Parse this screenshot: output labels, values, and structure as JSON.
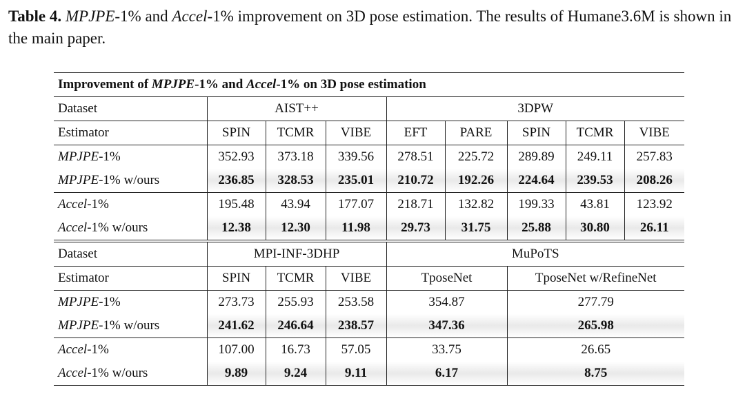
{
  "caption": {
    "label": "Table 4.",
    "parts": [
      " ",
      "MPJPE",
      "-1% and ",
      "Accel",
      "-1% improvement on 3D pose estimation. The results of Humane3.6M is shown in the main paper."
    ]
  },
  "table": {
    "title": [
      "Improvement of ",
      "MPJPE",
      "-1% and ",
      "Accel",
      "-1% on 3D pose estimation"
    ],
    "sections": [
      {
        "dataset_label": "Dataset",
        "datasets": [
          "AIST++",
          "3DPW"
        ],
        "estimator_label": "Estimator",
        "estimators": [
          "SPIN",
          "TCMR",
          "VIBE",
          "EFT",
          "PARE",
          "SPIN",
          "TCMR",
          "VIBE"
        ],
        "rows": [
          {
            "label": [
              "MPJPE",
              "-1%"
            ],
            "values": [
              "352.93",
              "373.18",
              "339.56",
              "278.51",
              "225.72",
              "289.89",
              "249.11",
              "257.83"
            ]
          },
          {
            "label": [
              "MPJPE",
              "-1% w/ours"
            ],
            "values": [
              "236.85",
              "328.53",
              "235.01",
              "210.72",
              "192.26",
              "224.64",
              "239.53",
              "208.26"
            ]
          },
          {
            "label": [
              "Accel",
              "-1%"
            ],
            "values": [
              "195.48",
              "43.94",
              "177.07",
              "218.71",
              "132.82",
              "199.33",
              "43.81",
              "123.92"
            ]
          },
          {
            "label": [
              "Accel",
              "-1% w/ours"
            ],
            "values": [
              "12.38",
              "12.30",
              "11.98",
              "29.73",
              "31.75",
              "25.88",
              "30.80",
              "26.11"
            ]
          }
        ]
      },
      {
        "dataset_label": "Dataset",
        "datasets": [
          "MPI-INF-3DHP",
          "MuPoTS"
        ],
        "estimator_label": "Estimator",
        "estimators": [
          "SPIN",
          "TCMR",
          "VIBE",
          "TposeNet",
          "TposeNet w/RefineNet"
        ],
        "rows": [
          {
            "label": [
              "MPJPE",
              "-1%"
            ],
            "values": [
              "273.73",
              "255.93",
              "253.58",
              "354.87",
              "277.79"
            ]
          },
          {
            "label": [
              "MPJPE",
              "-1% w/ours"
            ],
            "values": [
              "241.62",
              "246.64",
              "238.57",
              "347.36",
              "265.98"
            ]
          },
          {
            "label": [
              "Accel",
              "-1%"
            ],
            "values": [
              "107.00",
              "16.73",
              "57.05",
              "33.75",
              "26.65"
            ]
          },
          {
            "label": [
              "Accel",
              "-1% w/ours"
            ],
            "values": [
              "9.89",
              "9.24",
              "9.11",
              "6.17",
              "8.75"
            ]
          }
        ]
      }
    ]
  }
}
